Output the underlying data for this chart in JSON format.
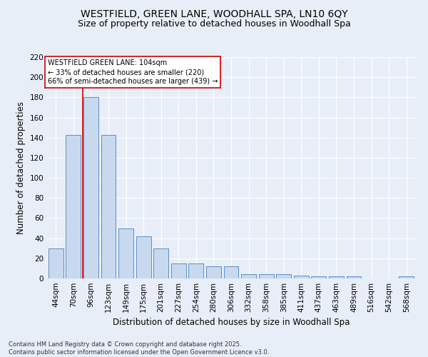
{
  "title_line1": "WESTFIELD, GREEN LANE, WOODHALL SPA, LN10 6QY",
  "title_line2": "Size of property relative to detached houses in Woodhall Spa",
  "xlabel": "Distribution of detached houses by size in Woodhall Spa",
  "ylabel": "Number of detached properties",
  "footer_line1": "Contains HM Land Registry data © Crown copyright and database right 2025.",
  "footer_line2": "Contains public sector information licensed under the Open Government Licence v3.0.",
  "bin_labels": [
    "44sqm",
    "70sqm",
    "96sqm",
    "123sqm",
    "149sqm",
    "175sqm",
    "201sqm",
    "227sqm",
    "254sqm",
    "280sqm",
    "306sqm",
    "332sqm",
    "358sqm",
    "385sqm",
    "411sqm",
    "437sqm",
    "463sqm",
    "489sqm",
    "516sqm",
    "542sqm",
    "568sqm"
  ],
  "bar_heights": [
    30,
    143,
    180,
    143,
    50,
    42,
    30,
    15,
    15,
    12,
    12,
    4,
    4,
    4,
    3,
    2,
    2,
    2,
    0,
    0,
    2
  ],
  "bar_color": "#c8d9ef",
  "bar_edge_color": "#5b8ec5",
  "red_line_index": 2,
  "annotation_line1": "WESTFIELD GREEN LANE: 104sqm",
  "annotation_line2": "← 33% of detached houses are smaller (220)",
  "annotation_line3": "66% of semi-detached houses are larger (439) →",
  "annotation_box_color": "#ffffff",
  "annotation_box_edge": "#cc0000",
  "ylim": [
    0,
    220
  ],
  "yticks": [
    0,
    20,
    40,
    60,
    80,
    100,
    120,
    140,
    160,
    180,
    200,
    220
  ],
  "background_color": "#e8eef7",
  "grid_color": "#ffffff",
  "title_fontsize": 10,
  "subtitle_fontsize": 9,
  "axis_label_fontsize": 8.5,
  "tick_fontsize": 7.5,
  "annotation_fontsize": 7,
  "footer_fontsize": 6
}
